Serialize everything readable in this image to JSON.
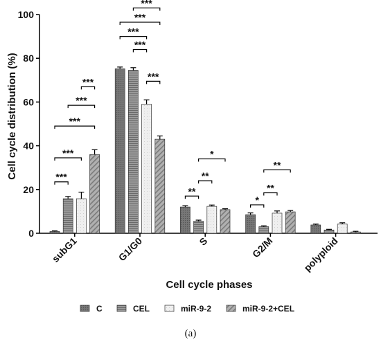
{
  "chart_data": {
    "type": "bar",
    "xlabel": "Cell cycle phases",
    "ylabel": "Cell cycle distribution (%)",
    "ylim": [
      0,
      100
    ],
    "yticks": [
      "0",
      "20",
      "40",
      "60",
      "80",
      "100"
    ],
    "categories": [
      "subG1",
      "G1/G0",
      "S",
      "G2/M",
      "polyploid"
    ],
    "series": [
      {
        "name": "C",
        "color": "#6e6e6e",
        "pattern": "dense-dots",
        "values": [
          0.8,
          75.2,
          12.0,
          8.5,
          3.8
        ],
        "errors": [
          0.3,
          0.8,
          0.6,
          0.8,
          0.4
        ]
      },
      {
        "name": "CEL",
        "color": "#8c8c8c",
        "pattern": "horizontal-lines",
        "values": [
          15.8,
          74.5,
          5.5,
          3.0,
          1.5
        ],
        "errors": [
          1.0,
          1.2,
          0.5,
          0.4,
          0.3
        ]
      },
      {
        "name": "miR-9-2",
        "color": "#e6e6e6",
        "pattern": "light",
        "values": [
          15.8,
          59.0,
          12.3,
          9.2,
          4.2
        ],
        "errors": [
          3.0,
          2.0,
          0.6,
          1.0,
          0.6
        ]
      },
      {
        "name": "miR-9-2+CEL",
        "color": "#a0a0a0",
        "pattern": "diagonal-hatch",
        "values": [
          36.0,
          43.0,
          10.8,
          9.8,
          0.6
        ],
        "errors": [
          2.2,
          1.5,
          0.4,
          0.6,
          0.3
        ]
      }
    ],
    "significance": [
      {
        "category": "subG1",
        "from": 0,
        "to": 1,
        "y": 23.5,
        "label": "***"
      },
      {
        "category": "subG1",
        "from": 0,
        "to": 2,
        "y": 34.5,
        "label": "***"
      },
      {
        "category": "subG1",
        "from": 0,
        "to": 3,
        "y": 49.0,
        "label": "***"
      },
      {
        "category": "subG1",
        "from": 1,
        "to": 3,
        "y": 58.5,
        "label": "***"
      },
      {
        "category": "subG1",
        "from": 2,
        "to": 3,
        "y": 67.0,
        "label": "***"
      },
      {
        "category": "G1/G0",
        "from": 2,
        "to": 3,
        "y": 69.5,
        "label": "***"
      },
      {
        "category": "G1/G0",
        "from": 1,
        "to": 2,
        "y": 84.0,
        "label": "***"
      },
      {
        "category": "G1/G0",
        "from": 0,
        "to": 2,
        "y": 90.0,
        "label": "***"
      },
      {
        "category": "G1/G0",
        "from": 0,
        "to": 3,
        "y": 96.5,
        "label": "***"
      },
      {
        "category": "G1/G0",
        "from": 1,
        "to": 3,
        "y": 103.0,
        "label": "***"
      },
      {
        "category": "S",
        "from": 0,
        "to": 1,
        "y": 17.0,
        "label": "**"
      },
      {
        "category": "S",
        "from": 1,
        "to": 2,
        "y": 24.0,
        "label": "**"
      },
      {
        "category": "S",
        "from": 1,
        "to": 3,
        "y": 34.0,
        "label": "*"
      },
      {
        "category": "G2/M",
        "from": 0,
        "to": 1,
        "y": 13.0,
        "label": "*"
      },
      {
        "category": "G2/M",
        "from": 1,
        "to": 2,
        "y": 18.5,
        "label": "**"
      },
      {
        "category": "G2/M",
        "from": 1,
        "to": 3,
        "y": 29.0,
        "label": "**"
      }
    ],
    "legend_position": "bottom",
    "grid": false
  },
  "caption": "(a)"
}
